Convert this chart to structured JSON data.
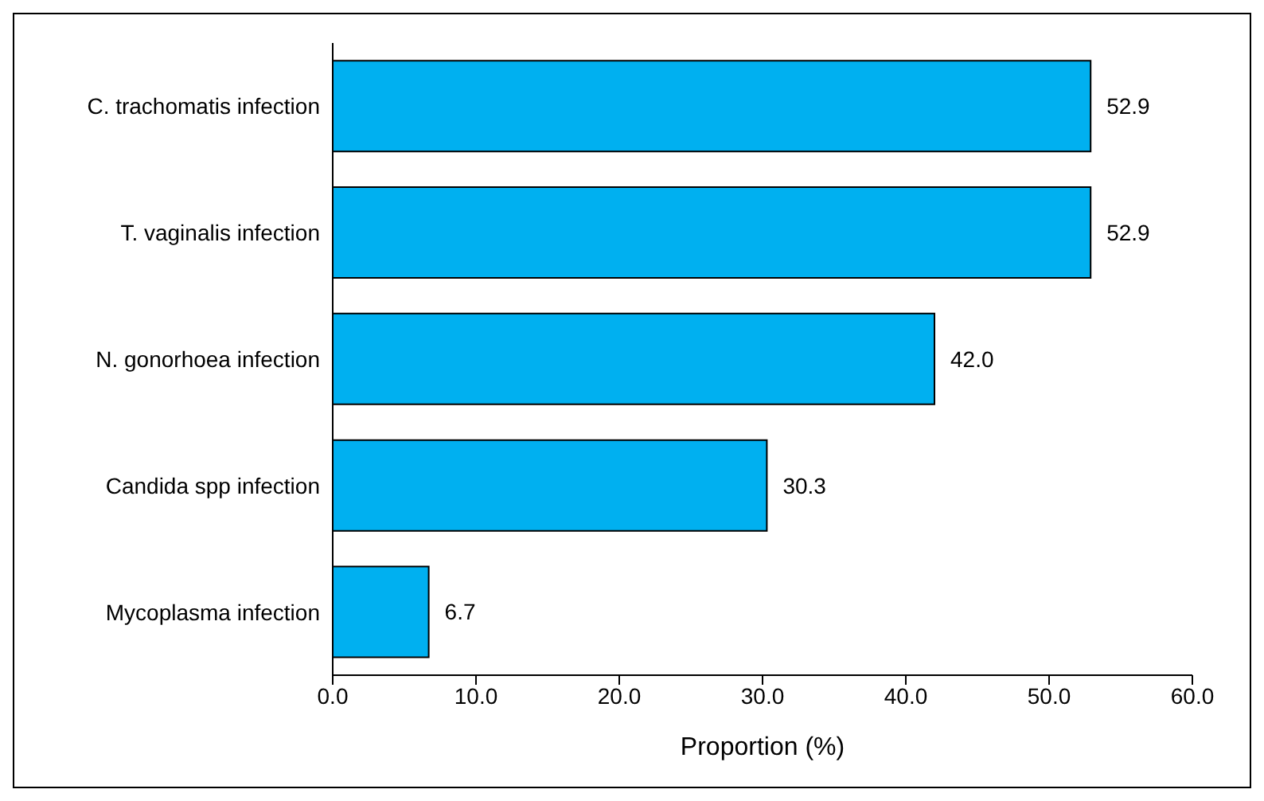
{
  "chart_data": {
    "type": "bar",
    "orientation": "horizontal",
    "categories": [
      "C. trachomatis infection",
      "T. vaginalis infection",
      "N. gonorhoea infection",
      "Candida spp infection",
      "Mycoplasma infection"
    ],
    "values": [
      52.9,
      52.9,
      42.0,
      30.3,
      6.7
    ],
    "color": "#00b0f0",
    "value_labels": [
      "52.9",
      "52.9",
      "42.0",
      "30.3",
      "6.7"
    ],
    "xlabel": "Proportion (%)",
    "xlim": [
      0,
      60
    ],
    "xticks": [
      {
        "value": 0,
        "label": "0.0"
      },
      {
        "value": 10,
        "label": "10.0"
      },
      {
        "value": 20,
        "label": "20.0"
      },
      {
        "value": 30,
        "label": "30.0"
      },
      {
        "value": 40,
        "label": "40.0"
      },
      {
        "value": 50,
        "label": "50.0"
      },
      {
        "value": 60,
        "label": "60.0"
      }
    ],
    "grid": false,
    "legend": false
  }
}
